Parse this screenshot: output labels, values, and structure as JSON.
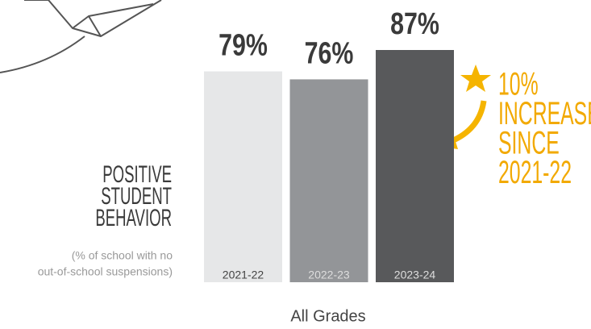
{
  "chart_data": {
    "type": "bar",
    "categories": [
      "2021-22",
      "2022-23",
      "2023-24"
    ],
    "values": [
      79,
      76,
      87
    ],
    "value_labels": [
      "79%",
      "76%",
      "87%"
    ],
    "colors": [
      "#e6e7e8",
      "#939598",
      "#58595b"
    ],
    "ylabel": [
      "POSITIVE",
      "STUDENT",
      "BEHAVIOR"
    ],
    "subtitle": [
      "(% of school with no",
      "out-of-school suspensions)"
    ],
    "xlabel": "All Grades",
    "annotation": [
      "10%",
      "INCREASE",
      "SINCE",
      "2021-22"
    ]
  }
}
